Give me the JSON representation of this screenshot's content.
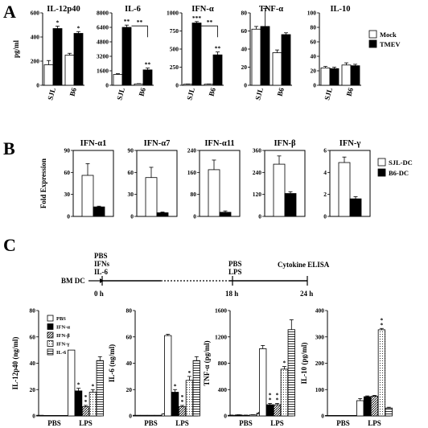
{
  "panel_labels": [
    "A",
    "B",
    "C"
  ],
  "chart_data": [
    {
      "type": "bar",
      "panel": "A",
      "title": "IL-12p40",
      "ylabel": "pg/ml",
      "ylim": [
        0,
        600
      ],
      "yticks": [
        0,
        200,
        400,
        600
      ],
      "categories": [
        "SJL",
        "B6"
      ],
      "series": [
        {
          "name": "Mock",
          "values": [
            170,
            250
          ],
          "errors": [
            35,
            15
          ]
        },
        {
          "name": "TMEV",
          "values": [
            470,
            430
          ],
          "errors": [
            20,
            15
          ]
        }
      ],
      "annotations": [
        {
          "category": "SJL",
          "series": "TMEV",
          "text": "*"
        },
        {
          "category": "B6",
          "series": "TMEV",
          "text": "*"
        }
      ]
    },
    {
      "type": "bar",
      "panel": "A",
      "title": "IL-6",
      "ylim": [
        0,
        8000
      ],
      "yticks": [
        0,
        1600,
        3200,
        4800,
        6400,
        8000
      ],
      "categories": [
        "SJL",
        "B6"
      ],
      "series": [
        {
          "name": "Mock",
          "values": [
            1200,
            150
          ],
          "errors": [
            80,
            30
          ]
        },
        {
          "name": "TMEV",
          "values": [
            6400,
            1700
          ],
          "errors": [
            250,
            200
          ]
        }
      ],
      "annotations": [
        {
          "category": "SJL",
          "series": "TMEV",
          "text": "**"
        },
        {
          "category": "B6",
          "series": "TMEV",
          "text": "**"
        },
        {
          "bracket": true,
          "text": "**"
        }
      ]
    },
    {
      "type": "bar",
      "panel": "A",
      "title": "IFN-α",
      "ylim": [
        0,
        1000
      ],
      "yticks": [
        0,
        250,
        500,
        750,
        1000
      ],
      "categories": [
        "SJL",
        "B6"
      ],
      "series": [
        {
          "name": "Mock",
          "values": [
            15,
            15
          ],
          "errors": [
            3,
            3
          ]
        },
        {
          "name": "TMEV",
          "values": [
            860,
            420
          ],
          "errors": [
            20,
            40
          ]
        }
      ],
      "annotations": [
        {
          "category": "SJL",
          "series": "TMEV",
          "text": "***"
        },
        {
          "category": "B6",
          "series": "TMEV",
          "text": "**"
        },
        {
          "bracket": true,
          "text": "**"
        }
      ]
    },
    {
      "type": "bar",
      "panel": "A",
      "title": "TNF-α",
      "ylim": [
        0,
        80
      ],
      "yticks": [
        0,
        20,
        40,
        60,
        80
      ],
      "categories": [
        "SJL",
        "B6"
      ],
      "series": [
        {
          "name": "Mock",
          "values": [
            62,
            36
          ],
          "errors": [
            3,
            3
          ]
        },
        {
          "name": "TMEV",
          "values": [
            65,
            56
          ],
          "errors": [
            20,
            2
          ]
        }
      ]
    },
    {
      "type": "bar",
      "panel": "A",
      "title": "IL-10",
      "ylim": [
        0,
        100
      ],
      "yticks": [
        0,
        20,
        40,
        60,
        80,
        100
      ],
      "categories": [
        "SJL",
        "B6"
      ],
      "series": [
        {
          "name": "Mock",
          "values": [
            24,
            28
          ],
          "errors": [
            2,
            3
          ]
        },
        {
          "name": "TMEV",
          "values": [
            23,
            27
          ],
          "errors": [
            2,
            2
          ]
        }
      ]
    },
    {
      "type": "bar",
      "panel": "B",
      "title": "IFN-α1",
      "ylabel": "Fold Expression",
      "ylim": [
        0,
        90
      ],
      "yticks": [
        0,
        30,
        60,
        90
      ],
      "series": [
        {
          "name": "SJL-DC",
          "values": [
            56
          ],
          "errors": [
            16
          ]
        },
        {
          "name": "B6-DC",
          "values": [
            13
          ],
          "errors": [
            1
          ]
        }
      ]
    },
    {
      "type": "bar",
      "panel": "B",
      "title": "IFN-α7",
      "ylim": [
        0,
        90
      ],
      "yticks": [
        0,
        30,
        60,
        90
      ],
      "series": [
        {
          "name": "SJL-DC",
          "values": [
            53
          ],
          "errors": [
            14
          ]
        },
        {
          "name": "B6-DC",
          "values": [
            5
          ],
          "errors": [
            1
          ]
        }
      ]
    },
    {
      "type": "bar",
      "panel": "B",
      "title": "IFN-α11",
      "ylim": [
        0,
        240
      ],
      "yticks": [
        0,
        80,
        160,
        240
      ],
      "series": [
        {
          "name": "SJL-DC",
          "values": [
            170
          ],
          "errors": [
            35
          ]
        },
        {
          "name": "B6-DC",
          "values": [
            15
          ],
          "errors": [
            5
          ]
        }
      ]
    },
    {
      "type": "bar",
      "panel": "B",
      "title": "IFN-β",
      "ylim": [
        0,
        360
      ],
      "yticks": [
        0,
        120,
        240,
        360
      ],
      "series": [
        {
          "name": "SJL-DC",
          "values": [
            285
          ],
          "errors": [
            45
          ]
        },
        {
          "name": "B6-DC",
          "values": [
            125
          ],
          "errors": [
            10
          ]
        }
      ]
    },
    {
      "type": "bar",
      "panel": "B",
      "title": "IFN-γ",
      "ylim": [
        0,
        6
      ],
      "yticks": [
        0,
        2,
        4,
        6
      ],
      "series": [
        {
          "name": "SJL-DC",
          "values": [
            4.9
          ],
          "errors": [
            0.5
          ]
        },
        {
          "name": "B6-DC",
          "values": [
            1.6
          ],
          "errors": [
            0.2
          ]
        }
      ]
    },
    {
      "type": "bar",
      "panel": "C",
      "title": "",
      "ylabel": "IL-12p40 (ng/ml)",
      "ylim": [
        0,
        80
      ],
      "yticks": [
        0,
        20,
        40,
        60,
        80
      ],
      "categories": [
        "PBS",
        "LPS"
      ],
      "series": [
        {
          "name": "PBS",
          "values": [
            0.5,
            50
          ],
          "errors": [
            0,
            0
          ]
        },
        {
          "name": "IFN-α",
          "values": [
            0,
            19
          ],
          "errors": [
            0,
            2
          ]
        },
        {
          "name": "IFN-β",
          "values": [
            0,
            7
          ],
          "errors": [
            0,
            1
          ]
        },
        {
          "name": "IFN-γ",
          "values": [
            0,
            18
          ],
          "errors": [
            0,
            2
          ]
        },
        {
          "name": "IL-6",
          "values": [
            0,
            42
          ],
          "errors": [
            0,
            3
          ]
        }
      ],
      "annotations": [
        {
          "category": "LPS",
          "series": "IFN-α",
          "text": "*"
        },
        {
          "category": "LPS",
          "series": "IFN-β",
          "text": "**"
        },
        {
          "category": "LPS",
          "series": "IFN-γ",
          "text": "*"
        }
      ]
    },
    {
      "type": "bar",
      "panel": "C",
      "ylabel": "IL-6 (ng/ml)",
      "ylim": [
        0,
        80
      ],
      "yticks": [
        0,
        20,
        40,
        60,
        80
      ],
      "categories": [
        "PBS",
        "LPS"
      ],
      "series": [
        {
          "name": "PBS",
          "values": [
            0.5,
            61
          ],
          "errors": [
            0,
            1
          ]
        },
        {
          "name": "IFN-α",
          "values": [
            0.5,
            18
          ],
          "errors": [
            0,
            2
          ]
        },
        {
          "name": "IFN-β",
          "values": [
            0.5,
            7
          ],
          "errors": [
            0,
            1
          ]
        },
        {
          "name": "IFN-γ",
          "values": [
            0.5,
            27
          ],
          "errors": [
            0,
            3
          ]
        },
        {
          "name": "IL-6",
          "values": [
            1.5,
            42
          ],
          "errors": [
            0.2,
            3
          ]
        }
      ],
      "annotations": [
        {
          "category": "LPS",
          "series": "IFN-α",
          "text": "*"
        },
        {
          "category": "LPS",
          "series": "IFN-β",
          "text": "**"
        },
        {
          "category": "LPS",
          "series": "IFN-γ",
          "text": "*"
        }
      ]
    },
    {
      "type": "bar",
      "panel": "C",
      "ylabel": "TNF-α (pg/ml)",
      "ylim": [
        0,
        1600
      ],
      "yticks": [
        0,
        400,
        800,
        1200,
        1600
      ],
      "categories": [
        "PBS",
        "LPS"
      ],
      "series": [
        {
          "name": "PBS",
          "values": [
            10,
            1020
          ],
          "errors": [
            3,
            50
          ]
        },
        {
          "name": "IFN-α",
          "values": [
            15,
            170
          ],
          "errors": [
            3,
            20
          ]
        },
        {
          "name": "IFN-β",
          "values": [
            10,
            170
          ],
          "errors": [
            3,
            20
          ]
        },
        {
          "name": "IFN-γ",
          "values": [
            15,
            710
          ],
          "errors": [
            3,
            40
          ]
        },
        {
          "name": "IL-6",
          "values": [
            40,
            1310
          ],
          "errors": [
            15,
            150
          ]
        }
      ],
      "annotations": [
        {
          "category": "LPS",
          "series": "IFN-α",
          "text": "**"
        },
        {
          "category": "LPS",
          "series": "IFN-β",
          "text": "**"
        },
        {
          "category": "LPS",
          "series": "IFN-γ",
          "text": "*"
        }
      ]
    },
    {
      "type": "bar",
      "panel": "C",
      "ylabel": "IL-10 (pg/ml)",
      "ylim": [
        0,
        400
      ],
      "yticks": [
        0,
        100,
        200,
        300,
        400
      ],
      "categories": [
        "PBS",
        "LPS"
      ],
      "series": [
        {
          "name": "PBS",
          "values": [
            0,
            58
          ],
          "errors": [
            0,
            8
          ]
        },
        {
          "name": "IFN-α",
          "values": [
            0,
            73
          ],
          "errors": [
            0,
            3
          ]
        },
        {
          "name": "IFN-β",
          "values": [
            0,
            75
          ],
          "errors": [
            0,
            3
          ]
        },
        {
          "name": "IFN-γ",
          "values": [
            0,
            327
          ],
          "errors": [
            0,
            5
          ]
        },
        {
          "name": "IL-6",
          "values": [
            0,
            30
          ],
          "errors": [
            0,
            3
          ]
        }
      ],
      "annotations": [
        {
          "category": "LPS",
          "series": "IFN-γ",
          "text": "**"
        }
      ]
    }
  ],
  "legends": {
    "A": [
      "Mock",
      "TMEV"
    ],
    "B": [
      "SJL-DC",
      "B6-DC"
    ],
    "C": [
      "PBS",
      "IFN-α",
      "IFN-β",
      "IFN-γ",
      "IL-6"
    ]
  },
  "timeline": {
    "start_label": "BM DC",
    "t0_items": [
      "PBS",
      "IFNs",
      "IL-6"
    ],
    "t18_items": [
      "PBS",
      "LPS"
    ],
    "end_text": "Cytokine ELISA",
    "times": [
      "0 h",
      "18 h",
      "24 h"
    ]
  },
  "colors": {
    "mock": "#ffffff",
    "tmev": "#000000",
    "sjl": "#ffffff",
    "b6": "#000000"
  }
}
